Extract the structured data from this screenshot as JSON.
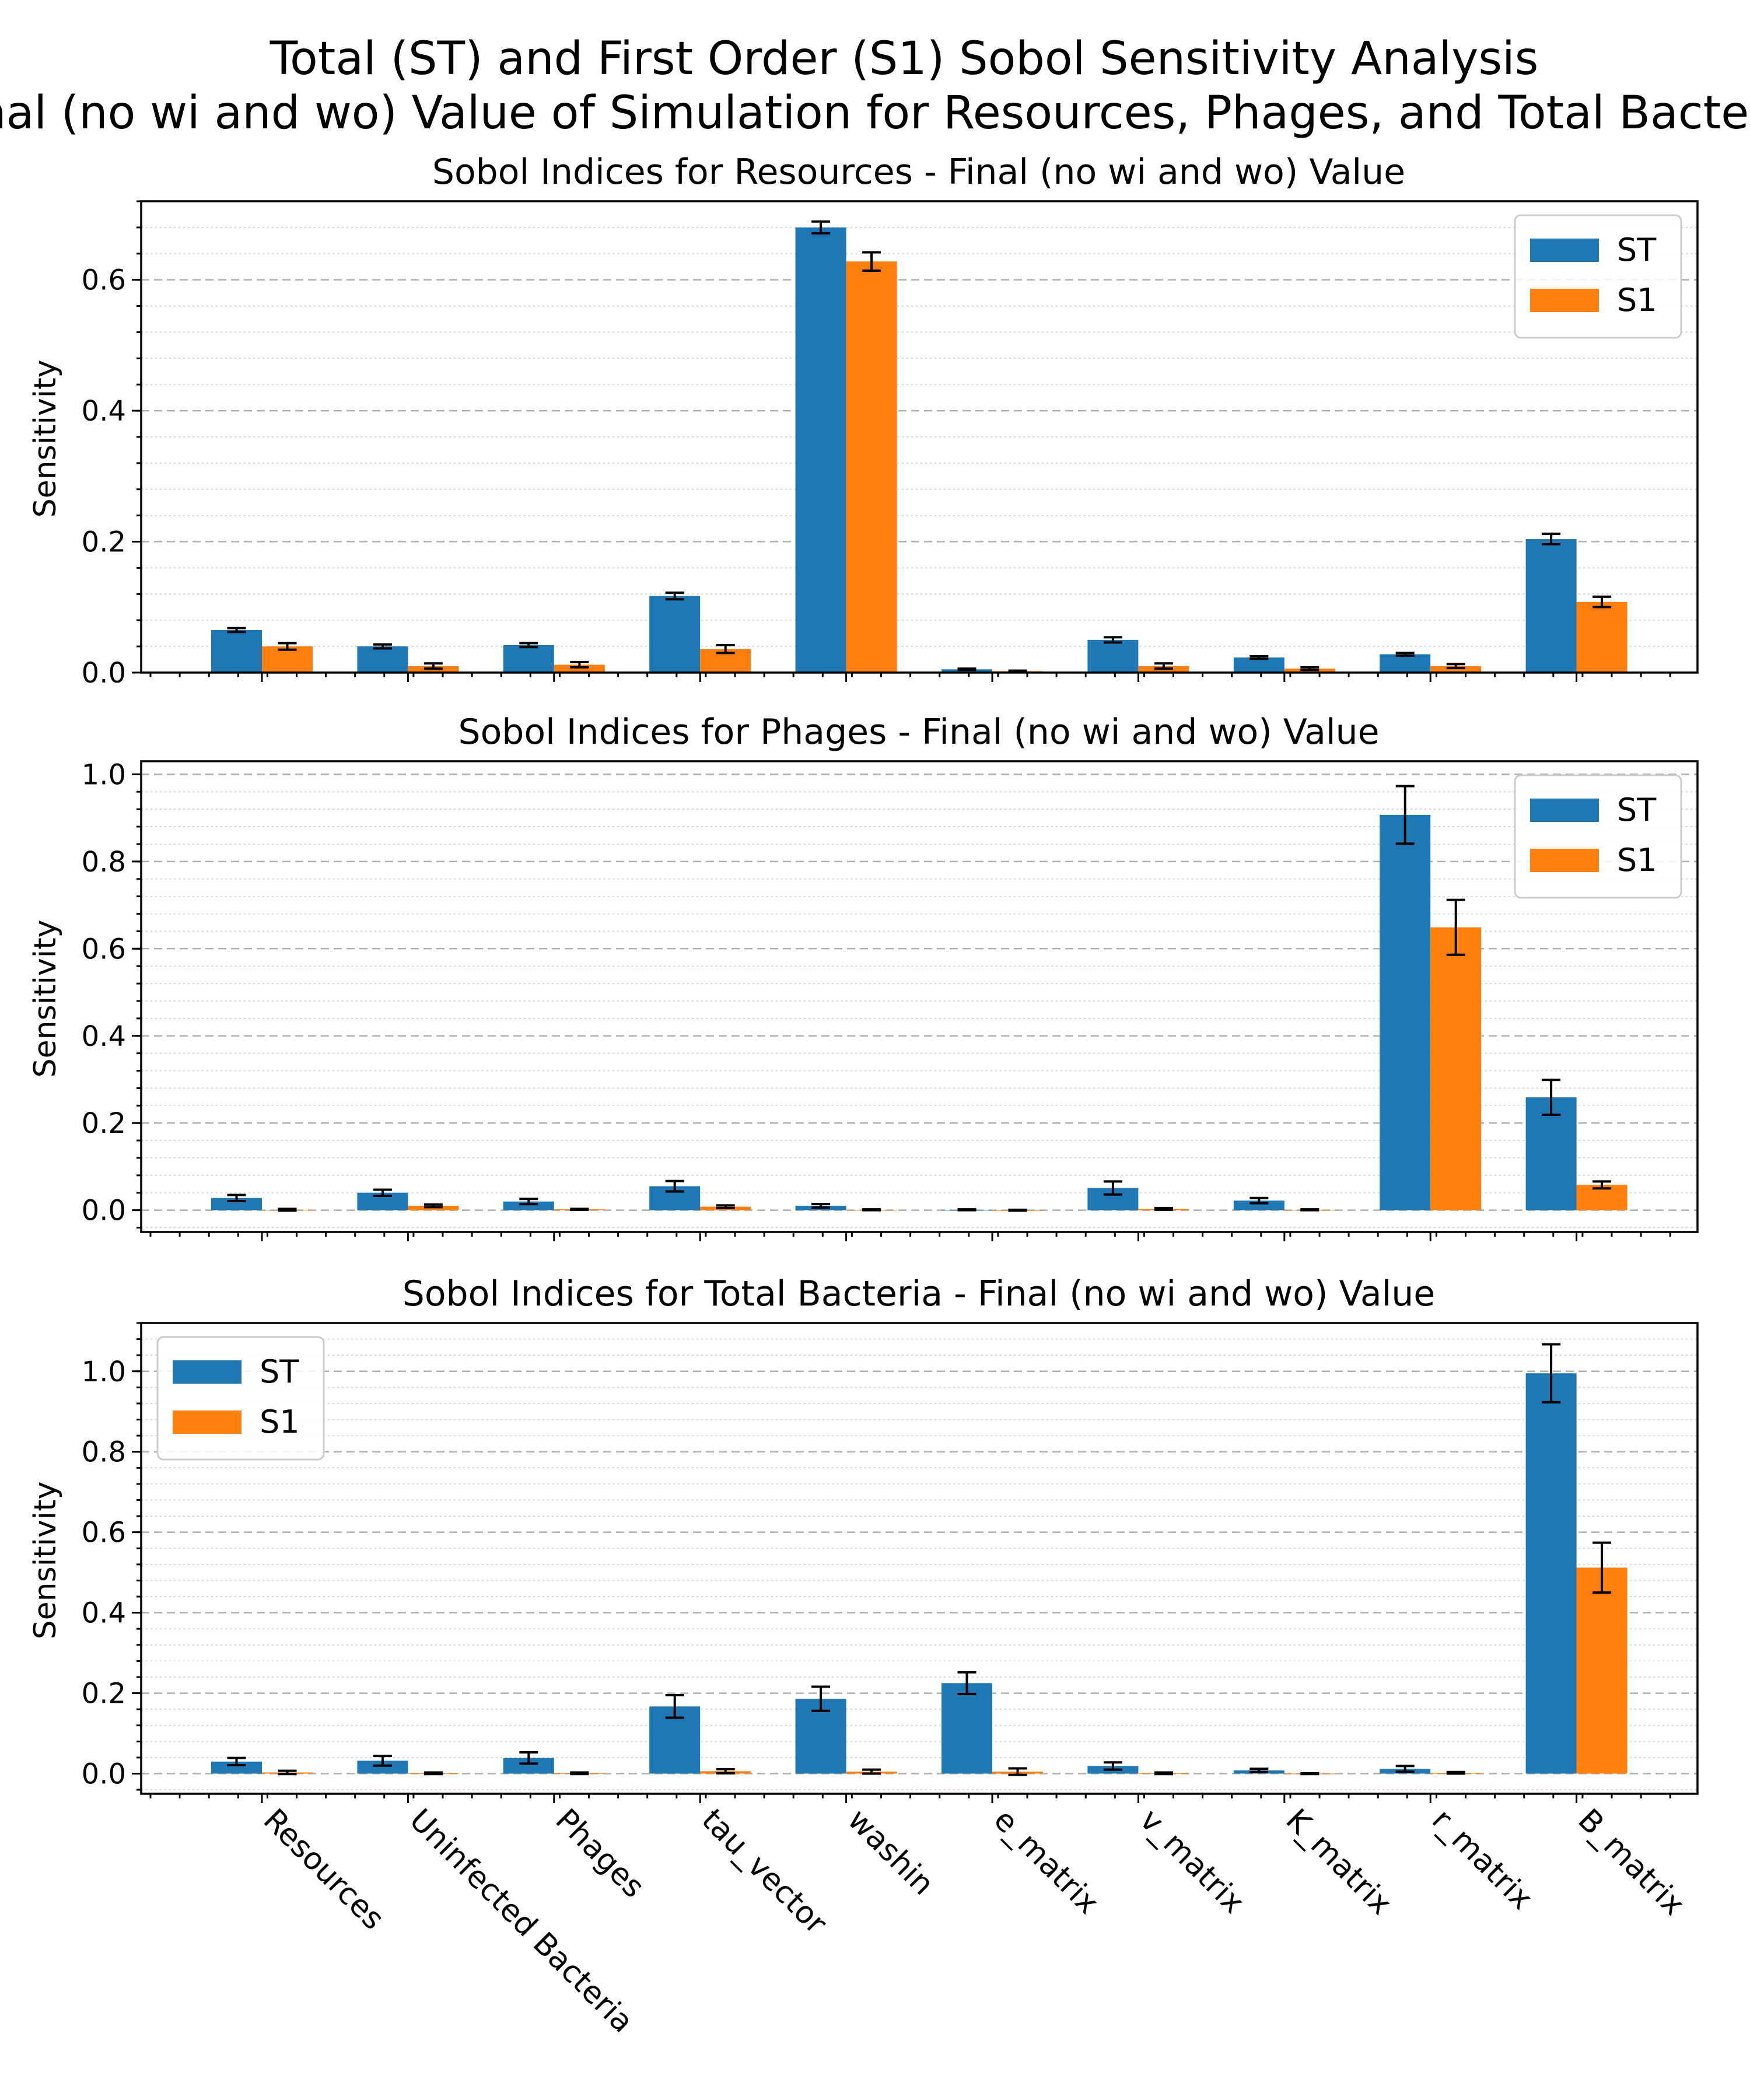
{
  "figure": {
    "suptitle_line1": "Total (ST) and First Order (S1) Sobol Sensitivity Analysis",
    "suptitle_line2": "Final (no wi and wo) Value of Simulation for Resources, Phages, and Total Bacteria"
  },
  "colors": {
    "ST": "#1f77b4",
    "S1": "#ff7f0e"
  },
  "chart_data": [
    {
      "type": "bar",
      "title": "Sobol Indices for Resources - Final (no wi and wo) Value",
      "xlabel": "",
      "ylabel": "Sensitivity",
      "ylim": [
        0,
        0.72
      ],
      "yticks": [
        0.0,
        0.2,
        0.4,
        0.6
      ],
      "ytick_labels": [
        "0.0",
        "0.2",
        "0.4",
        "0.6"
      ],
      "legend_position": "upper right",
      "grid": true,
      "categories": [
        "Resources",
        "Uninfected Bacteria",
        "Phages",
        "tau_vector",
        "washin",
        "e_matrix",
        "v_matrix",
        "K_matrix",
        "r_matrix",
        "B_matrix"
      ],
      "series": [
        {
          "name": "ST",
          "values": [
            0.065,
            0.04,
            0.042,
            0.117,
            0.68,
            0.005,
            0.05,
            0.023,
            0.028,
            0.204
          ],
          "errors": [
            0.003,
            0.003,
            0.003,
            0.005,
            0.009,
            0.001,
            0.004,
            0.002,
            0.002,
            0.008
          ]
        },
        {
          "name": "S1",
          "values": [
            0.04,
            0.01,
            0.012,
            0.036,
            0.628,
            0.002,
            0.01,
            0.006,
            0.01,
            0.108
          ],
          "errors": [
            0.005,
            0.004,
            0.004,
            0.006,
            0.014,
            0.001,
            0.004,
            0.002,
            0.003,
            0.008
          ]
        }
      ]
    },
    {
      "type": "bar",
      "title": "Sobol Indices for Phages - Final (no wi and wo) Value",
      "xlabel": "",
      "ylabel": "Sensitivity",
      "ylim": [
        -0.05,
        1.03
      ],
      "yticks": [
        0.0,
        0.2,
        0.4,
        0.6,
        0.8,
        1.0
      ],
      "ytick_labels": [
        "0.0",
        "0.2",
        "0.4",
        "0.6",
        "0.8",
        "1.0"
      ],
      "legend_position": "upper right",
      "grid": true,
      "categories": [
        "Resources",
        "Uninfected Bacteria",
        "Phages",
        "tau_vector",
        "washin",
        "e_matrix",
        "v_matrix",
        "K_matrix",
        "r_matrix",
        "B_matrix"
      ],
      "series": [
        {
          "name": "ST",
          "values": [
            0.028,
            0.04,
            0.02,
            0.055,
            0.01,
            0.001,
            0.051,
            0.022,
            0.907,
            0.259
          ],
          "errors": [
            0.007,
            0.007,
            0.006,
            0.012,
            0.004,
            0.001,
            0.015,
            0.006,
            0.066,
            0.04
          ]
        },
        {
          "name": "S1",
          "values": [
            0.001,
            0.01,
            0.002,
            0.008,
            0.001,
            0.0,
            0.003,
            0.001,
            0.649,
            0.058
          ],
          "errors": [
            0.002,
            0.003,
            0.001,
            0.003,
            0.001,
            0.001,
            0.002,
            0.001,
            0.063,
            0.008
          ]
        }
      ]
    },
    {
      "type": "bar",
      "title": "Sobol Indices for Total Bacteria - Final (no wi and wo) Value",
      "xlabel": "",
      "ylabel": "Sensitivity",
      "ylim": [
        -0.05,
        1.12
      ],
      "yticks": [
        0.0,
        0.2,
        0.4,
        0.6,
        0.8,
        1.0
      ],
      "ytick_labels": [
        "0.0",
        "0.2",
        "0.4",
        "0.6",
        "0.8",
        "1.0"
      ],
      "legend_position": "upper left",
      "grid": true,
      "categories": [
        "Resources",
        "Uninfected Bacteria",
        "Phages",
        "tau_vector",
        "washin",
        "e_matrix",
        "v_matrix",
        "K_matrix",
        "r_matrix",
        "B_matrix"
      ],
      "series": [
        {
          "name": "ST",
          "values": [
            0.03,
            0.032,
            0.039,
            0.167,
            0.186,
            0.225,
            0.019,
            0.008,
            0.012,
            0.995
          ],
          "errors": [
            0.009,
            0.012,
            0.014,
            0.028,
            0.03,
            0.027,
            0.009,
            0.004,
            0.007,
            0.072
          ]
        },
        {
          "name": "S1",
          "values": [
            0.003,
            0.001,
            0.001,
            0.006,
            0.005,
            0.005,
            0.001,
            0.0,
            0.002,
            0.512
          ],
          "errors": [
            0.004,
            0.002,
            0.002,
            0.005,
            0.005,
            0.008,
            0.002,
            0.001,
            0.002,
            0.062
          ]
        }
      ]
    }
  ]
}
